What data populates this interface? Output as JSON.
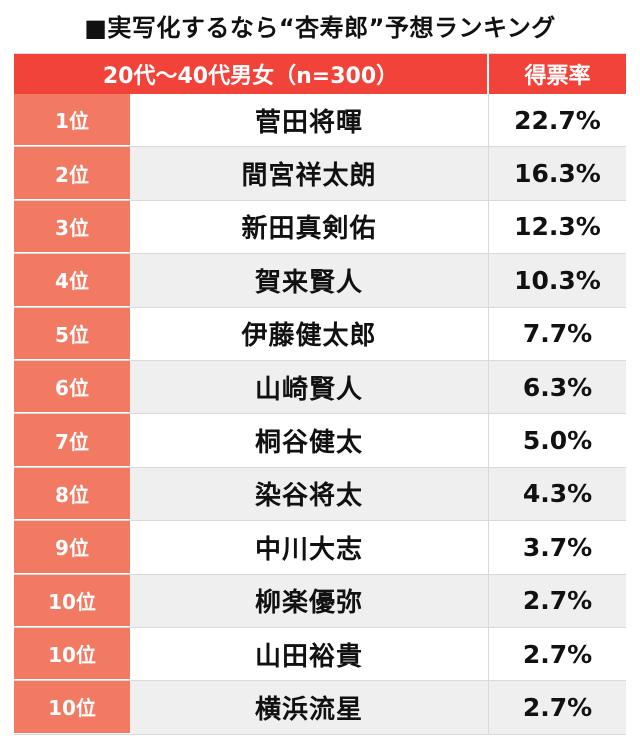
{
  "title": "■実写化するなら“杏寿郎”予想ランキング",
  "header": {
    "group": "20代〜40代男女（n=300）",
    "rate": "得票率"
  },
  "chart_data": {
    "type": "table",
    "title": "■実写化するなら“杏寿郎”予想ランキング",
    "columns": [
      "20代〜40代男女（n=300）",
      "得票率"
    ],
    "rows": [
      {
        "rank": "1位",
        "name": "菅田将暉",
        "rate": "22.7%",
        "value": 22.7
      },
      {
        "rank": "2位",
        "name": "間宮祥太朗",
        "rate": "16.3%",
        "value": 16.3
      },
      {
        "rank": "3位",
        "name": "新田真剣佑",
        "rate": "12.3%",
        "value": 12.3
      },
      {
        "rank": "4位",
        "name": "賀来賢人",
        "rate": "10.3%",
        "value": 10.3
      },
      {
        "rank": "5位",
        "name": "伊藤健太郎",
        "rate": "7.7%",
        "value": 7.7
      },
      {
        "rank": "6位",
        "name": "山崎賢人",
        "rate": "6.3%",
        "value": 6.3
      },
      {
        "rank": "7位",
        "name": "桐谷健太",
        "rate": "5.0%",
        "value": 5.0
      },
      {
        "rank": "8位",
        "name": "染谷将太",
        "rate": "4.3%",
        "value": 4.3
      },
      {
        "rank": "9位",
        "name": "中川大志",
        "rate": "3.7%",
        "value": 3.7
      },
      {
        "rank": "10位",
        "name": "柳楽優弥",
        "rate": "2.7%",
        "value": 2.7
      },
      {
        "rank": "10位",
        "name": "山田裕貴",
        "rate": "2.7%",
        "value": 2.7
      },
      {
        "rank": "10位",
        "name": "横浜流星",
        "rate": "2.7%",
        "value": 2.7
      }
    ]
  },
  "colors": {
    "header": "#f2433a",
    "rank": "#f27a62",
    "stripe": "#efefef"
  }
}
